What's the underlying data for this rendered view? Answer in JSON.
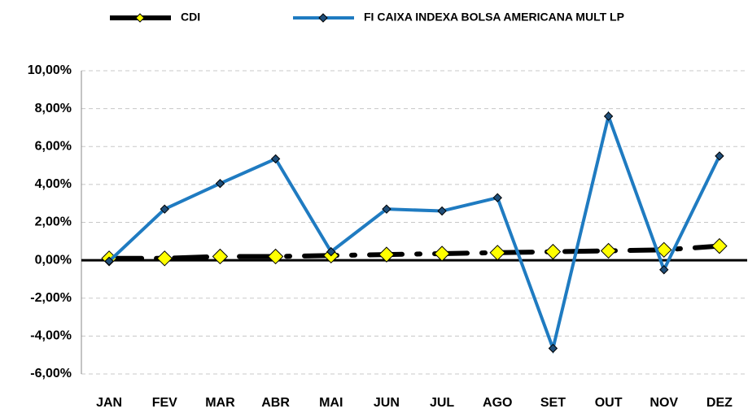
{
  "chart_data": {
    "type": "line",
    "categories": [
      "JAN",
      "FEV",
      "MAR",
      "ABR",
      "MAI",
      "JUN",
      "JUL",
      "AGO",
      "SET",
      "OUT",
      "NOV",
      "DEZ"
    ],
    "series": [
      {
        "name": "CDI",
        "color": "#000000",
        "marker_color": "#ffff00",
        "values": [
          0.1,
          0.1,
          0.2,
          0.2,
          0.25,
          0.3,
          0.35,
          0.4,
          0.45,
          0.5,
          0.55,
          0.75
        ]
      },
      {
        "name": "FI CAIXA INDEXA BOLSA AMERICANA MULT LP",
        "color": "#1f7bc1",
        "marker_color": "#1f4e79",
        "values": [
          -0.05,
          2.7,
          4.05,
          5.35,
          0.45,
          2.7,
          2.6,
          3.3,
          -4.65,
          7.6,
          -0.5,
          5.5
        ]
      }
    ],
    "ylim": [
      -6,
      10
    ],
    "yticks": [
      {
        "value": -6,
        "label": "-6,00%"
      },
      {
        "value": -4,
        "label": "-4,00%"
      },
      {
        "value": -2,
        "label": "-2,00%"
      },
      {
        "value": 0,
        "label": "0,00%"
      },
      {
        "value": 2,
        "label": "2,00%"
      },
      {
        "value": 4,
        "label": "4,00%"
      },
      {
        "value": 6,
        "label": "6,00%"
      },
      {
        "value": 8,
        "label": "8,00%"
      },
      {
        "value": 10,
        "label": "10,00%"
      }
    ],
    "grid": true,
    "legend": "top"
  }
}
